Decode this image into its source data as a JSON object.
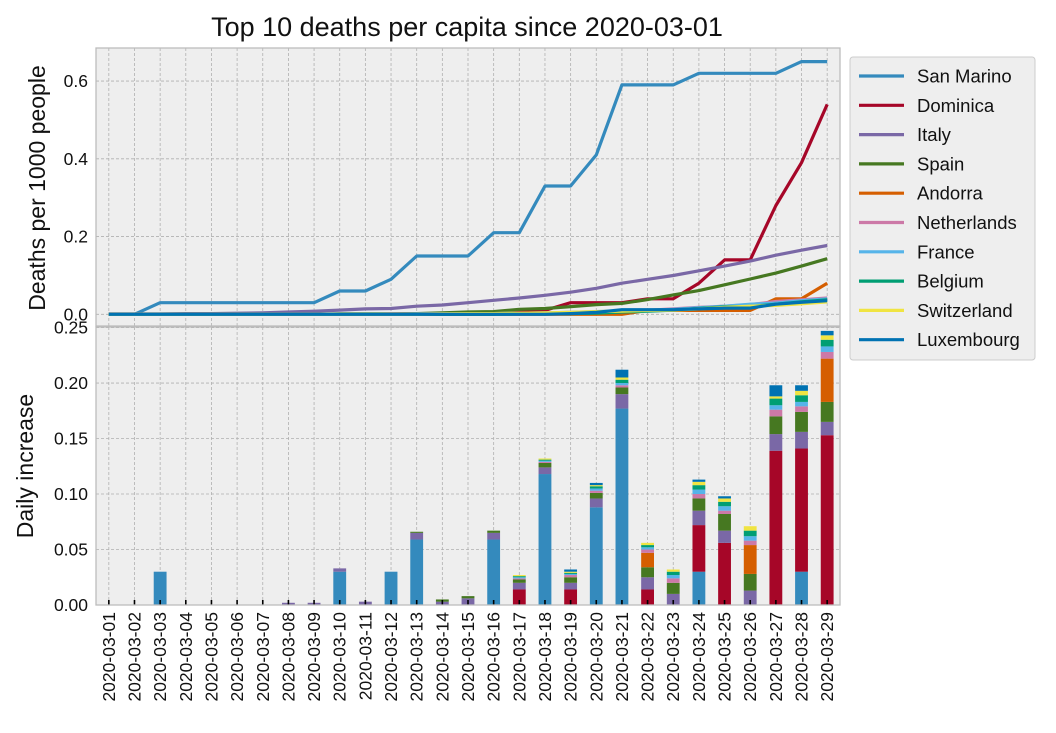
{
  "chart_data": [
    {
      "type": "line",
      "title": "Top 10 deaths per capita since 2020-03-01",
      "xlabel": "",
      "ylabel": "Deaths per 1000 people",
      "ylim": [
        -0.03,
        0.685
      ],
      "yticks": [
        0.0,
        0.2,
        0.4,
        0.6
      ],
      "ytick_labels": [
        "0.0",
        "0.2",
        "0.4",
        "0.6"
      ],
      "grid": true,
      "legend": "outside-right",
      "x": [
        "2020-03-01",
        "2020-03-02",
        "2020-03-03",
        "2020-03-04",
        "2020-03-05",
        "2020-03-06",
        "2020-03-07",
        "2020-03-08",
        "2020-03-09",
        "2020-03-10",
        "2020-03-11",
        "2020-03-12",
        "2020-03-13",
        "2020-03-14",
        "2020-03-15",
        "2020-03-16",
        "2020-03-17",
        "2020-03-18",
        "2020-03-19",
        "2020-03-20",
        "2020-03-21",
        "2020-03-22",
        "2020-03-23",
        "2020-03-24",
        "2020-03-25",
        "2020-03-26",
        "2020-03-27",
        "2020-03-28",
        "2020-03-29"
      ],
      "series": [
        {
          "name": "San Marino",
          "color": "#348ABD",
          "values": [
            0,
            0,
            0.03,
            0.03,
            0.03,
            0.03,
            0.03,
            0.03,
            0.03,
            0.06,
            0.06,
            0.09,
            0.15,
            0.15,
            0.15,
            0.21,
            0.21,
            0.33,
            0.33,
            0.41,
            0.59,
            0.59,
            0.59,
            0.62,
            0.62,
            0.62,
            0.62,
            0.65,
            0.65
          ]
        },
        {
          "name": "Dominica",
          "color": "#A60628",
          "values": [
            0,
            0,
            0,
            0,
            0,
            0,
            0,
            0,
            0,
            0,
            0,
            0,
            0,
            0,
            0,
            0,
            0.01,
            0.01,
            0.03,
            0.03,
            0.03,
            0.04,
            0.04,
            0.08,
            0.14,
            0.14,
            0.28,
            0.39,
            0.54
          ]
        },
        {
          "name": "Italy",
          "color": "#7A68A6",
          "values": [
            0.001,
            0.001,
            0.001,
            0.002,
            0.002,
            0.003,
            0.004,
            0.006,
            0.008,
            0.011,
            0.014,
            0.015,
            0.021,
            0.024,
            0.03,
            0.036,
            0.042,
            0.049,
            0.057,
            0.067,
            0.08,
            0.09,
            0.1,
            0.112,
            0.124,
            0.137,
            0.152,
            0.165,
            0.177
          ]
        },
        {
          "name": "Spain",
          "color": "#467821",
          "values": [
            0,
            0,
            0,
            0,
            0,
            0,
            0,
            0,
            0,
            0.001,
            0.001,
            0.001,
            0.002,
            0.004,
            0.006,
            0.007,
            0.013,
            0.015,
            0.02,
            0.025,
            0.028,
            0.038,
            0.05,
            0.061,
            0.076,
            0.091,
            0.106,
            0.124,
            0.143
          ]
        },
        {
          "name": "Andorra",
          "color": "#D55E00",
          "values": [
            0,
            0,
            0,
            0,
            0,
            0,
            0,
            0,
            0,
            0,
            0,
            0,
            0,
            0,
            0,
            0,
            0,
            0,
            0,
            0,
            0,
            0.01,
            0.01,
            0.01,
            0.01,
            0.01,
            0.04,
            0.04,
            0.08
          ]
        },
        {
          "name": "Netherlands",
          "color": "#CC79A7",
          "values": [
            0,
            0,
            0,
            0,
            0,
            0,
            0,
            0,
            0,
            0,
            0,
            0.001,
            0.001,
            0.001,
            0.001,
            0.002,
            0.003,
            0.003,
            0.005,
            0.006,
            0.008,
            0.01,
            0.014,
            0.018,
            0.021,
            0.025,
            0.033,
            0.037,
            0.042
          ]
        },
        {
          "name": "France",
          "color": "#56B4E9",
          "values": [
            0,
            0,
            0,
            0,
            0,
            0,
            0,
            0,
            0,
            0,
            0,
            0,
            0.001,
            0.001,
            0.002,
            0.002,
            0.003,
            0.004,
            0.005,
            0.007,
            0.009,
            0.01,
            0.013,
            0.017,
            0.021,
            0.026,
            0.029,
            0.035,
            0.04
          ]
        },
        {
          "name": "Belgium",
          "color": "#009E73",
          "values": [
            0,
            0,
            0,
            0,
            0,
            0,
            0,
            0,
            0,
            0,
            0,
            0,
            0,
            0,
            0,
            0,
            0.001,
            0.001,
            0.002,
            0.003,
            0.006,
            0.008,
            0.011,
            0.015,
            0.019,
            0.02,
            0.026,
            0.032,
            0.037
          ]
        },
        {
          "name": "Switzerland",
          "color": "#F0E442",
          "values": [
            0,
            0,
            0,
            0,
            0,
            0,
            0,
            0,
            0,
            0,
            0,
            0,
            0,
            0.001,
            0.002,
            0.002,
            0.003,
            0.004,
            0.005,
            0.007,
            0.008,
            0.01,
            0.011,
            0.014,
            0.018,
            0.021,
            0.023,
            0.027,
            0.032
          ]
        },
        {
          "name": "Luxembourg",
          "color": "#0072B2",
          "values": [
            0,
            0,
            0,
            0,
            0,
            0,
            0,
            0,
            0,
            0,
            0,
            0,
            0,
            0,
            0,
            0,
            0,
            0,
            0.002,
            0.005,
            0.012,
            0.012,
            0.012,
            0.014,
            0.016,
            0.016,
            0.026,
            0.031,
            0.035
          ]
        }
      ]
    },
    {
      "type": "bar",
      "stacked": true,
      "xlabel": "",
      "ylabel": "Daily increase",
      "ylim": [
        0,
        0.2505
      ],
      "yticks": [
        0.0,
        0.05,
        0.1,
        0.15,
        0.2,
        0.25
      ],
      "ytick_labels": [
        "0.00",
        "0.05",
        "0.10",
        "0.15",
        "0.20",
        "0.25"
      ],
      "grid": true,
      "categories": [
        "2020-03-01",
        "2020-03-02",
        "2020-03-03",
        "2020-03-04",
        "2020-03-05",
        "2020-03-06",
        "2020-03-07",
        "2020-03-08",
        "2020-03-09",
        "2020-03-10",
        "2020-03-11",
        "2020-03-12",
        "2020-03-13",
        "2020-03-14",
        "2020-03-15",
        "2020-03-16",
        "2020-03-17",
        "2020-03-18",
        "2020-03-19",
        "2020-03-20",
        "2020-03-21",
        "2020-03-22",
        "2020-03-23",
        "2020-03-24",
        "2020-03-25",
        "2020-03-26",
        "2020-03-27",
        "2020-03-28",
        "2020-03-29"
      ],
      "series": [
        {
          "name": "San Marino",
          "color": "#348ABD",
          "values": [
            0,
            0,
            0.03,
            0,
            0,
            0,
            0,
            0,
            0,
            0.03,
            0,
            0.03,
            0.059,
            0,
            0,
            0.059,
            0,
            0.118,
            0,
            0.088,
            0.177,
            0,
            0,
            0.03,
            0,
            0,
            0,
            0.03,
            0
          ]
        },
        {
          "name": "Dominica",
          "color": "#A60628",
          "values": [
            0,
            0,
            0,
            0,
            0,
            0,
            0,
            0,
            0,
            0,
            0,
            0,
            0,
            0,
            0,
            0,
            0.014,
            0,
            0.014,
            0,
            0,
            0.014,
            0,
            0.042,
            0.056,
            0,
            0.139,
            0.111,
            0.153
          ]
        },
        {
          "name": "Italy",
          "color": "#7A68A6",
          "values": [
            0,
            0,
            0,
            0,
            0,
            0,
            0,
            0.002,
            0.002,
            0.003,
            0.003,
            0,
            0.006,
            0.003,
            0.006,
            0.006,
            0.006,
            0.006,
            0.006,
            0.008,
            0.013,
            0.011,
            0.01,
            0.013,
            0.011,
            0.013,
            0.015,
            0.015,
            0.012
          ]
        },
        {
          "name": "Spain",
          "color": "#467821",
          "values": [
            0,
            0,
            0,
            0,
            0,
            0,
            0,
            0,
            0,
            0,
            0,
            0,
            0.001,
            0.002,
            0.002,
            0.002,
            0.003,
            0.004,
            0.005,
            0.005,
            0.006,
            0.009,
            0.01,
            0.011,
            0.015,
            0.015,
            0.016,
            0.018,
            0.018
          ]
        },
        {
          "name": "Andorra",
          "color": "#D55E00",
          "values": [
            0,
            0,
            0,
            0,
            0,
            0,
            0,
            0,
            0,
            0,
            0,
            0,
            0,
            0,
            0,
            0,
            0,
            0,
            0,
            0,
            0,
            0.013,
            0,
            0,
            0,
            0.026,
            0,
            0,
            0.039
          ]
        },
        {
          "name": "Netherlands",
          "color": "#CC79A7",
          "values": [
            0,
            0,
            0,
            0,
            0,
            0,
            0,
            0,
            0,
            0,
            0,
            0,
            0,
            0,
            0,
            0,
            0.001,
            0.001,
            0.002,
            0.002,
            0.002,
            0.003,
            0.004,
            0.004,
            0.003,
            0.004,
            0.006,
            0.005,
            0.006
          ]
        },
        {
          "name": "France",
          "color": "#56B4E9",
          "values": [
            0,
            0,
            0,
            0,
            0,
            0,
            0,
            0,
            0,
            0,
            0,
            0,
            0,
            0,
            0,
            0,
            0.001,
            0.001,
            0.001,
            0.002,
            0.002,
            0.002,
            0.003,
            0.004,
            0.004,
            0.004,
            0.004,
            0.004,
            0.005
          ]
        },
        {
          "name": "Belgium",
          "color": "#009E73",
          "values": [
            0,
            0,
            0,
            0,
            0,
            0,
            0,
            0,
            0,
            0,
            0,
            0,
            0,
            0,
            0,
            0,
            0.001,
            0.001,
            0.001,
            0.002,
            0.003,
            0.002,
            0.003,
            0.004,
            0.004,
            0.005,
            0.006,
            0.006,
            0.006
          ]
        },
        {
          "name": "Switzerland",
          "color": "#F0E442",
          "values": [
            0,
            0,
            0,
            0,
            0,
            0,
            0,
            0,
            0,
            0,
            0,
            0,
            0,
            0,
            0,
            0,
            0.001,
            0.001,
            0.001,
            0.001,
            0.002,
            0.002,
            0.002,
            0.003,
            0.003,
            0.004,
            0.002,
            0.004,
            0.004
          ]
        },
        {
          "name": "Luxembourg",
          "color": "#0072B2",
          "values": [
            0,
            0,
            0,
            0,
            0,
            0,
            0,
            0,
            0,
            0,
            0,
            0,
            0,
            0,
            0,
            0,
            0,
            0,
            0.002,
            0.002,
            0.007,
            0,
            0,
            0.002,
            0.002,
            0,
            0.01,
            0.005,
            0.004
          ]
        }
      ]
    }
  ]
}
